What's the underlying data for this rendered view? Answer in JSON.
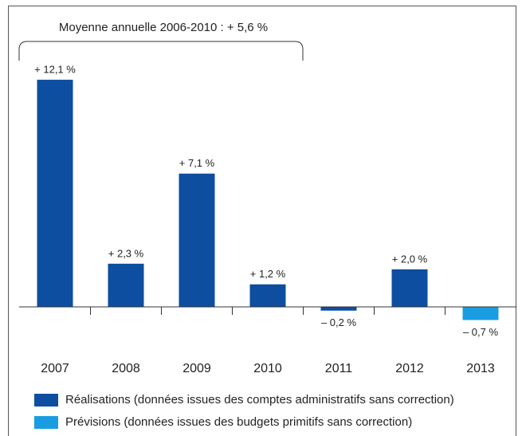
{
  "chart_data": {
    "type": "bar",
    "annotation": "Moyenne annuelle 2006-2010 : + 5,6 %",
    "categories": [
      "2007",
      "2008",
      "2009",
      "2010",
      "2011",
      "2012",
      "2013"
    ],
    "series": [
      {
        "name": "Réalisations (données issues des comptes administratifs sans correction)",
        "color": "#0d4ea0",
        "values": [
          12.1,
          2.3,
          7.1,
          1.2,
          -0.2,
          2.0,
          null
        ],
        "value_labels": [
          "+ 12,1 %",
          "+ 2,3 %",
          "+ 7,1 %",
          "+ 1,2 %",
          "– 0,2 %",
          "+ 2,0 %",
          null
        ]
      },
      {
        "name": "Prévisions (données issues des budgets primitifs sans correction)",
        "color": "#1a9de0",
        "values": [
          null,
          null,
          null,
          null,
          null,
          null,
          -0.7
        ],
        "value_labels": [
          null,
          null,
          null,
          null,
          null,
          null,
          "– 0,7 %"
        ]
      }
    ]
  }
}
